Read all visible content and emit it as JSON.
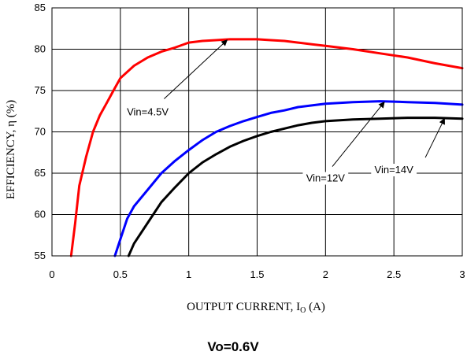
{
  "chart_data": {
    "type": "line",
    "title": "",
    "caption": "Vo=0.6V",
    "xlabel": {
      "main": "OUTPUT CURRENT, I",
      "sub": "O",
      "suffix": " (A)"
    },
    "ylabel": "EFFICIENCY, η  (%)",
    "xlim": [
      0,
      3
    ],
    "ylim": [
      55,
      85
    ],
    "xticks": [
      0,
      0.5,
      1,
      1.5,
      2,
      2.5,
      3
    ],
    "xtick_labels": [
      "0",
      "0.5",
      "1",
      "1.5",
      "2",
      "2.5",
      "3"
    ],
    "yticks": [
      55,
      60,
      65,
      70,
      75,
      80,
      85
    ],
    "ytick_labels": [
      "55",
      "60",
      "65",
      "70",
      "75",
      "80",
      "85"
    ],
    "grid": true,
    "legend": "none",
    "series": [
      {
        "label": "Vin=4.5V",
        "color": "#ff0000",
        "points": [
          [
            0.14,
            55
          ],
          [
            0.17,
            59
          ],
          [
            0.2,
            63.5
          ],
          [
            0.25,
            67
          ],
          [
            0.3,
            70
          ],
          [
            0.35,
            72
          ],
          [
            0.4,
            73.5
          ],
          [
            0.45,
            75
          ],
          [
            0.5,
            76.5
          ],
          [
            0.6,
            78
          ],
          [
            0.7,
            79
          ],
          [
            0.8,
            79.7
          ],
          [
            0.9,
            80.2
          ],
          [
            1.0,
            80.8
          ],
          [
            1.1,
            81
          ],
          [
            1.2,
            81.1
          ],
          [
            1.3,
            81.2
          ],
          [
            1.4,
            81.2
          ],
          [
            1.5,
            81.2
          ],
          [
            1.6,
            81.1
          ],
          [
            1.7,
            81
          ],
          [
            1.8,
            80.8
          ],
          [
            1.9,
            80.6
          ],
          [
            2.0,
            80.4
          ],
          [
            2.2,
            80
          ],
          [
            2.4,
            79.5
          ],
          [
            2.6,
            79
          ],
          [
            2.8,
            78.3
          ],
          [
            3.0,
            77.7
          ]
        ]
      },
      {
        "label": "Vin=12V",
        "color": "#0000ff",
        "points": [
          [
            0.46,
            55
          ],
          [
            0.5,
            57
          ],
          [
            0.55,
            59.5
          ],
          [
            0.6,
            61
          ],
          [
            0.7,
            63
          ],
          [
            0.8,
            65
          ],
          [
            0.9,
            66.5
          ],
          [
            1.0,
            67.8
          ],
          [
            1.1,
            69
          ],
          [
            1.2,
            70
          ],
          [
            1.3,
            70.7
          ],
          [
            1.4,
            71.3
          ],
          [
            1.5,
            71.8
          ],
          [
            1.6,
            72.3
          ],
          [
            1.7,
            72.6
          ],
          [
            1.8,
            73
          ],
          [
            1.9,
            73.2
          ],
          [
            2.0,
            73.4
          ],
          [
            2.2,
            73.6
          ],
          [
            2.4,
            73.7
          ],
          [
            2.6,
            73.6
          ],
          [
            2.8,
            73.5
          ],
          [
            3.0,
            73.3
          ]
        ]
      },
      {
        "label": "Vin=14V",
        "color": "#000000",
        "points": [
          [
            0.56,
            55
          ],
          [
            0.6,
            56.5
          ],
          [
            0.7,
            59
          ],
          [
            0.8,
            61.5
          ],
          [
            0.9,
            63.3
          ],
          [
            1.0,
            65
          ],
          [
            1.1,
            66.3
          ],
          [
            1.2,
            67.3
          ],
          [
            1.3,
            68.2
          ],
          [
            1.4,
            68.9
          ],
          [
            1.5,
            69.5
          ],
          [
            1.6,
            70
          ],
          [
            1.7,
            70.4
          ],
          [
            1.8,
            70.8
          ],
          [
            1.9,
            71.1
          ],
          [
            2.0,
            71.3
          ],
          [
            2.2,
            71.5
          ],
          [
            2.4,
            71.6
          ],
          [
            2.6,
            71.7
          ],
          [
            2.8,
            71.7
          ],
          [
            3.0,
            71.6
          ]
        ]
      }
    ],
    "annotations": [
      {
        "text": "Vin=4.5V",
        "label_at": [
          0.7,
          72.0
        ],
        "arrow_from": [
          0.82,
          74.0
        ],
        "arrow_to": [
          1.28,
          81.1
        ]
      },
      {
        "text": "Vin=12V",
        "label_at": [
          2.0,
          64.0
        ],
        "arrow_from": [
          2.05,
          65.8
        ],
        "arrow_to": [
          2.43,
          73.6
        ]
      },
      {
        "text": "Vin=14V",
        "label_at": [
          2.5,
          65.0
        ],
        "arrow_from": [
          2.73,
          66.9
        ],
        "arrow_to": [
          2.87,
          71.6
        ]
      }
    ]
  }
}
